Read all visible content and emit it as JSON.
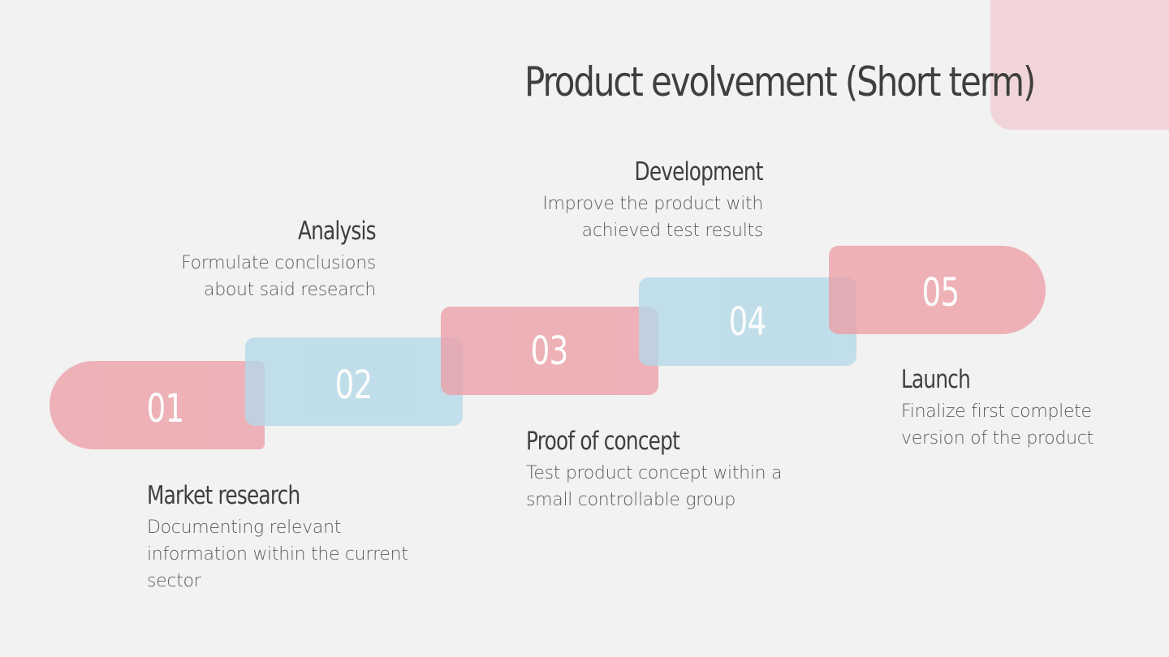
{
  "title": "Product evolvement (Short term)",
  "colors": {
    "background": "#f2f2f2",
    "pink": "#ec9fa6",
    "blue": "#b3d8e9",
    "corner_decoration": "#f2d5d8",
    "text": "#3f3f3f"
  },
  "steps": [
    {
      "number": "01",
      "color": "pink",
      "heading": "Market research",
      "description": "Documenting relevant\ninformation within the current\nsector"
    },
    {
      "number": "02",
      "color": "blue",
      "heading": "Analysis",
      "description": "Formulate conclusions\nabout said research"
    },
    {
      "number": "03",
      "color": "pink",
      "heading": "Proof of concept",
      "description": "Test product concept within a\nsmall controllable group"
    },
    {
      "number": "04",
      "color": "blue",
      "heading": "Development",
      "description": "Improve the product with\nachieved test results"
    },
    {
      "number": "05",
      "color": "pink",
      "heading": "Launch",
      "description": "Finalize first complete\nversion of the product"
    }
  ]
}
